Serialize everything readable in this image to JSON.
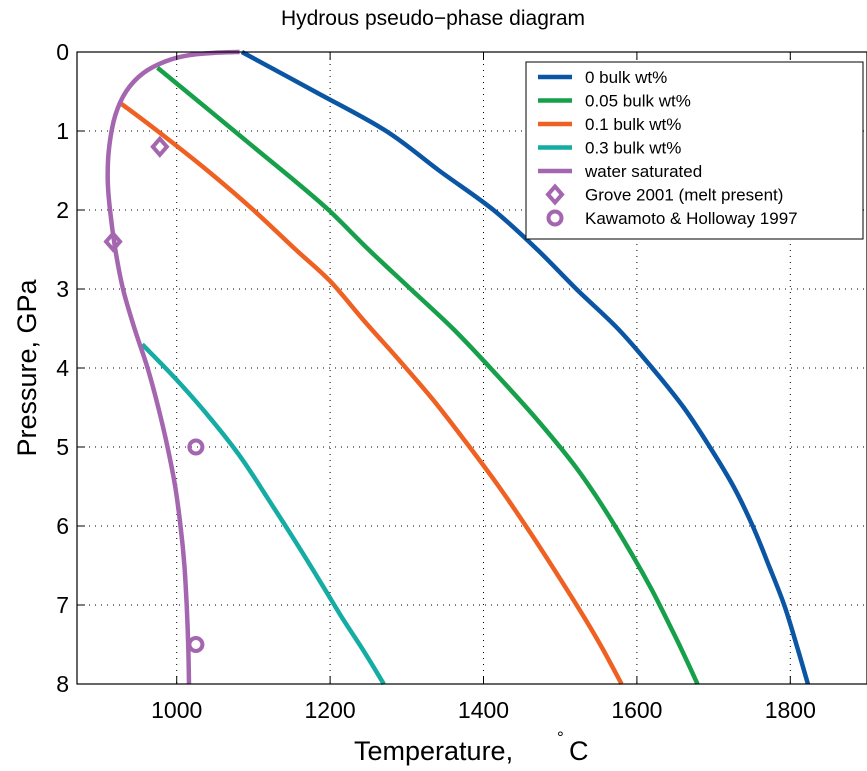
{
  "chart_data": {
    "type": "line",
    "title": "Hydrous pseudo−phase diagram",
    "xlabel": "Temperature, °C",
    "xlabel_main": "Temperature, ",
    "xlabel_degree": "°",
    "xlabel_unit": "C",
    "ylabel": "Pressure, GPa",
    "xlim": [
      870,
      1900
    ],
    "ylim": [
      0,
      8
    ],
    "y_reversed": true,
    "grid": true,
    "legend_position": "top-right",
    "x_ticks": [
      1000,
      1200,
      1400,
      1600,
      1800
    ],
    "y_ticks": [
      0,
      1,
      2,
      3,
      4,
      5,
      6,
      7,
      8
    ],
    "series": [
      {
        "name": "0 bulk wt%",
        "color": "#0b56a4",
        "points": [
          [
            1085,
            0
          ],
          [
            1180,
            0.5
          ],
          [
            1273,
            1.0
          ],
          [
            1342,
            1.5
          ],
          [
            1413,
            2.0
          ],
          [
            1470,
            2.5
          ],
          [
            1521,
            3.0
          ],
          [
            1575,
            3.5
          ],
          [
            1620,
            4.0
          ],
          [
            1661,
            4.5
          ],
          [
            1695,
            5.0
          ],
          [
            1726,
            5.5
          ],
          [
            1751,
            6.0
          ],
          [
            1772,
            6.5
          ],
          [
            1792,
            7.0
          ],
          [
            1808,
            7.5
          ],
          [
            1823,
            8.0
          ]
        ]
      },
      {
        "name": "0.05 bulk wt%",
        "color": "#17a04a",
        "points": [
          [
            975,
            0.2
          ],
          [
            1044,
            0.75
          ],
          [
            1100,
            1.2
          ],
          [
            1150,
            1.6
          ],
          [
            1198,
            2.0
          ],
          [
            1250,
            2.5
          ],
          [
            1305,
            3.0
          ],
          [
            1360,
            3.5
          ],
          [
            1409,
            4.0
          ],
          [
            1465,
            4.6
          ],
          [
            1516,
            5.2
          ],
          [
            1552,
            5.7
          ],
          [
            1590,
            6.3
          ],
          [
            1619,
            6.8
          ],
          [
            1645,
            7.3
          ],
          [
            1660,
            7.6
          ],
          [
            1679,
            8.0
          ]
        ]
      },
      {
        "name": "0.1 bulk wt%",
        "color": "#ef6123",
        "points": [
          [
            927,
            0.65
          ],
          [
            975,
            1.0
          ],
          [
            1040,
            1.5
          ],
          [
            1100,
            2.0
          ],
          [
            1155,
            2.5
          ],
          [
            1200,
            2.9
          ],
          [
            1244,
            3.4
          ],
          [
            1290,
            3.9
          ],
          [
            1334,
            4.4
          ],
          [
            1374,
            4.9
          ],
          [
            1420,
            5.5
          ],
          [
            1462,
            6.1
          ],
          [
            1502,
            6.7
          ],
          [
            1534,
            7.2
          ],
          [
            1555,
            7.55
          ],
          [
            1580,
            8.0
          ]
        ]
      },
      {
        "name": "0.3 bulk wt%",
        "color": "#14aca3",
        "points": [
          [
            955,
            3.7
          ],
          [
            1000,
            4.15
          ],
          [
            1045,
            4.65
          ],
          [
            1085,
            5.15
          ],
          [
            1122,
            5.7
          ],
          [
            1155,
            6.2
          ],
          [
            1190,
            6.75
          ],
          [
            1215,
            7.15
          ],
          [
            1245,
            7.6
          ],
          [
            1270,
            8.0
          ]
        ]
      },
      {
        "name": "water saturated",
        "color": "#a566b0",
        "points": [
          [
            1082,
            0
          ],
          [
            1050,
            0.01
          ],
          [
            1016,
            0.04
          ],
          [
            985,
            0.12
          ],
          [
            956,
            0.27
          ],
          [
            934,
            0.5
          ],
          [
            920,
            0.8
          ],
          [
            912,
            1.2
          ],
          [
            910,
            1.6
          ],
          [
            913,
            2.0
          ],
          [
            920,
            2.5
          ],
          [
            930,
            3.0
          ],
          [
            945,
            3.5
          ],
          [
            962,
            4.0
          ],
          [
            976,
            4.5
          ],
          [
            988,
            5.0
          ],
          [
            998,
            5.5
          ],
          [
            1005,
            6.0
          ],
          [
            1010,
            6.5
          ],
          [
            1013,
            7.0
          ],
          [
            1015,
            7.5
          ],
          [
            1016,
            8.0
          ]
        ]
      }
    ],
    "markers": [
      {
        "name": "Grove 2001 (melt present)",
        "shape": "diamond",
        "color": "#a566b0",
        "points": [
          [
            978,
            1.2
          ],
          [
            917,
            2.4
          ]
        ]
      },
      {
        "name": "Kawamoto & Holloway 1997",
        "shape": "circle",
        "color": "#a566b0",
        "points": [
          [
            1025,
            5.0
          ],
          [
            1025,
            7.5
          ]
        ]
      }
    ]
  }
}
